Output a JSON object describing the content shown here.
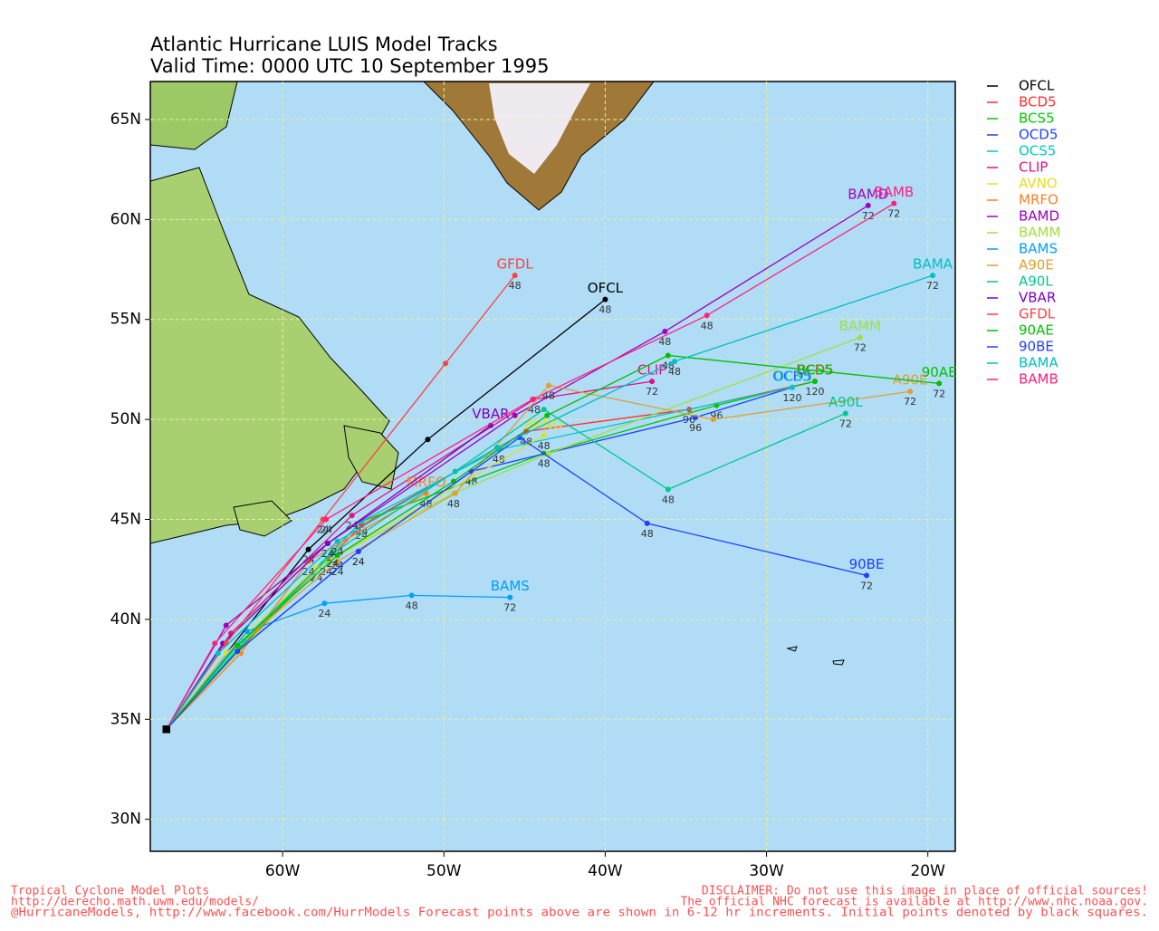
{
  "chart_data": {
    "type": "line",
    "title": "Atlantic Hurricane LUIS Model Tracks",
    "subtitle": "Valid Time: 0000 UTC 10 September 1995",
    "xlim": [
      -68.2,
      -18.3
    ],
    "ylim": [
      28.4,
      66.9
    ],
    "xticks": [
      {
        "value": -60,
        "label": "60W"
      },
      {
        "value": -50,
        "label": "50W"
      },
      {
        "value": -40,
        "label": "40W"
      },
      {
        "value": -30,
        "label": "30W"
      },
      {
        "value": -20,
        "label": "20W"
      }
    ],
    "yticks": [
      {
        "value": 30,
        "label": "30N"
      },
      {
        "value": 35,
        "label": "35N"
      },
      {
        "value": 40,
        "label": "40N"
      },
      {
        "value": 45,
        "label": "45N"
      },
      {
        "value": 50,
        "label": "50N"
      },
      {
        "value": 55,
        "label": "55N"
      },
      {
        "value": 60,
        "label": "60N"
      },
      {
        "value": 65,
        "label": "65N"
      }
    ],
    "grid": true,
    "series": [
      {
        "name": "OFCL",
        "color": "#000000",
        "x": [
          -67.2,
          -58.4,
          -51.0,
          -40.0
        ],
        "values": [
          34.5,
          43.5,
          49.0,
          56.0
        ],
        "hour_labels": [
          null,
          "24",
          null,
          "48"
        ]
      },
      {
        "name": "BCD5",
        "color": "#ff3030",
        "x": [
          -67.2,
          -62.8,
          -55.1,
          -44.9,
          -34.8,
          -27.0
        ],
        "values": [
          34.5,
          38.4,
          44.7,
          49.4,
          50.5,
          51.9
        ],
        "hour_labels": [
          null,
          null,
          "24",
          "48",
          "96",
          "120"
        ]
      },
      {
        "name": "BCS5",
        "color": "#00c800",
        "x": [
          -67.2,
          -62.6,
          -55.1,
          -43.8,
          -33.1,
          -27.0
        ],
        "values": [
          34.5,
          38.6,
          44.9,
          48.3,
          50.7,
          51.9
        ],
        "hour_labels": [
          null,
          null,
          "24",
          "48",
          "96",
          null
        ]
      },
      {
        "name": "OCD5",
        "color": "#2040ff",
        "x": [
          -67.2,
          -62.8,
          -55.3,
          -48.3,
          -34.4,
          -28.4
        ],
        "values": [
          34.5,
          38.4,
          43.4,
          47.4,
          50.1,
          51.6
        ],
        "hour_labels": [
          null,
          null,
          "24",
          "48",
          "96",
          "120"
        ]
      },
      {
        "name": "OCS5",
        "color": "#00c8c8",
        "x": [
          -67.2,
          -62.4,
          -55.1,
          -46.6,
          -28.4
        ],
        "values": [
          34.5,
          38.9,
          44.9,
          48.5,
          51.6
        ],
        "hour_labels": [
          null,
          null,
          "24",
          "48",
          null
        ]
      },
      {
        "name": "CLIP",
        "color": "#e0108a",
        "x": [
          -67.2,
          -63.2,
          -55.7,
          -44.4,
          -37.1
        ],
        "values": [
          34.5,
          39.3,
          45.2,
          51.0,
          51.9
        ],
        "hour_labels": [
          null,
          null,
          "24",
          "48",
          "72"
        ]
      },
      {
        "name": "AVNO",
        "color": "#e0e020",
        "x": [
          -67.2,
          -63.5,
          -57.9,
          -43.8
        ],
        "values": [
          34.5,
          38.3,
          42.6,
          49.2
        ],
        "hour_labels": [
          null,
          null,
          "24",
          "48"
        ]
      },
      {
        "name": "MRFO",
        "color": "#ff8020",
        "x": [
          -67.2,
          -62.6,
          -58.4,
          -51.1
        ],
        "values": [
          34.5,
          38.3,
          42.9,
          46.3
        ],
        "hour_labels": [
          null,
          null,
          "24",
          "48"
        ]
      },
      {
        "name": "BAMD",
        "color": "#a000c0",
        "x": [
          -67.2,
          -63.5,
          -57.2,
          -45.6,
          -36.3,
          -23.7
        ],
        "values": [
          34.5,
          39.7,
          43.8,
          50.2,
          54.4,
          60.7
        ],
        "hour_labels": [
          null,
          null,
          "24",
          null,
          "48",
          "72"
        ]
      },
      {
        "name": "BAMM",
        "color": "#a0e040",
        "x": [
          -67.2,
          -62.8,
          -57.3,
          -49.4,
          -43.5,
          -24.2
        ],
        "values": [
          34.5,
          38.3,
          42.9,
          46.3,
          48.3,
          54.1
        ],
        "hour_labels": [
          null,
          null,
          "24",
          "48",
          null,
          "72"
        ]
      },
      {
        "name": "BAMS",
        "color": "#00a0ff",
        "x": [
          -67.2,
          -62.2,
          -57.4,
          -52.0,
          -45.9
        ],
        "values": [
          34.5,
          39.4,
          40.8,
          41.2,
          41.1
        ],
        "hour_labels": [
          null,
          null,
          "24",
          "48",
          "72"
        ]
      },
      {
        "name": "A90E",
        "color": "#e0a030",
        "x": [
          -67.2,
          -62.8,
          -56.6,
          -49.3,
          -43.5,
          -33.3,
          -21.1
        ],
        "values": [
          34.5,
          38.7,
          42.9,
          46.3,
          51.7,
          50.0,
          51.4
        ],
        "hour_labels": [
          null,
          null,
          "24",
          null,
          "48",
          null,
          "72"
        ]
      },
      {
        "name": "A90L",
        "color": "#00c890",
        "x": [
          -67.2,
          -62.8,
          -56.9,
          -49.3,
          -43.8,
          -36.1,
          -25.1
        ],
        "values": [
          34.5,
          38.7,
          43.3,
          47.4,
          50.5,
          46.5,
          50.3
        ],
        "hour_labels": [
          null,
          null,
          "24",
          null,
          null,
          "48",
          "72"
        ]
      },
      {
        "name": "VBAR",
        "color": "#8000c0",
        "x": [
          -67.2,
          -63.7,
          -57.2,
          -47.1
        ],
        "values": [
          34.5,
          38.8,
          43.8,
          49.7
        ],
        "hour_labels": [
          null,
          null,
          "24",
          null
        ]
      },
      {
        "name": "GFDL",
        "color": "#ff4040",
        "x": [
          -67.2,
          -63.5,
          -57.5,
          -49.9,
          -45.6
        ],
        "values": [
          34.5,
          38.8,
          45.0,
          52.8,
          57.2
        ],
        "hour_labels": [
          null,
          null,
          "24",
          null,
          "48"
        ]
      },
      {
        "name": "90AE",
        "color": "#00c000",
        "x": [
          -67.2,
          -62.8,
          -56.6,
          -49.4,
          -43.6,
          -36.1,
          -19.3
        ],
        "values": [
          34.5,
          38.7,
          43.2,
          46.9,
          50.2,
          53.2,
          51.8
        ],
        "hour_labels": [
          null,
          null,
          "24",
          null,
          null,
          "48",
          "72"
        ]
      },
      {
        "name": "90BE",
        "color": "#2040ff",
        "x": [
          -67.2,
          -62.8,
          -55.3,
          -45.3,
          -37.4,
          -23.8
        ],
        "values": [
          34.5,
          38.4,
          43.4,
          49.1,
          44.8,
          42.2
        ],
        "hour_labels": [
          null,
          null,
          "24",
          null,
          "48",
          "72"
        ]
      },
      {
        "name": "BAMA",
        "color": "#00c0c0",
        "x": [
          -67.2,
          -64.0,
          -56.6,
          -46.7,
          -35.7,
          -19.7
        ],
        "values": [
          34.5,
          38.3,
          43.9,
          48.6,
          52.9,
          57.2
        ],
        "hour_labels": [
          null,
          null,
          "24",
          null,
          "48",
          "72"
        ]
      },
      {
        "name": "BAMB",
        "color": "#ff2080",
        "x": [
          -67.2,
          -64.2,
          -57.3,
          -44.5,
          -33.7,
          -22.1
        ],
        "values": [
          34.5,
          38.8,
          45.0,
          51.0,
          55.2,
          60.8
        ],
        "hour_labels": [
          null,
          null,
          "24",
          null,
          "48",
          "72"
        ]
      }
    ],
    "footer_left": [
      "Tropical Cyclone Model Plots",
      "http://derecho.math.uwm.edu/models/"
    ],
    "footer_right": [
      "DISCLAIMER: Do not use this image in place of official sources!",
      "The official NHC forecast is available at http://www.nhc.noaa.gov."
    ],
    "footer_bottom": "@HurricaneModels, http://www.facebook.com/HurrModels  Forecast points above are shown in 6-12 hr increments. Initial points denoted by black squares."
  }
}
